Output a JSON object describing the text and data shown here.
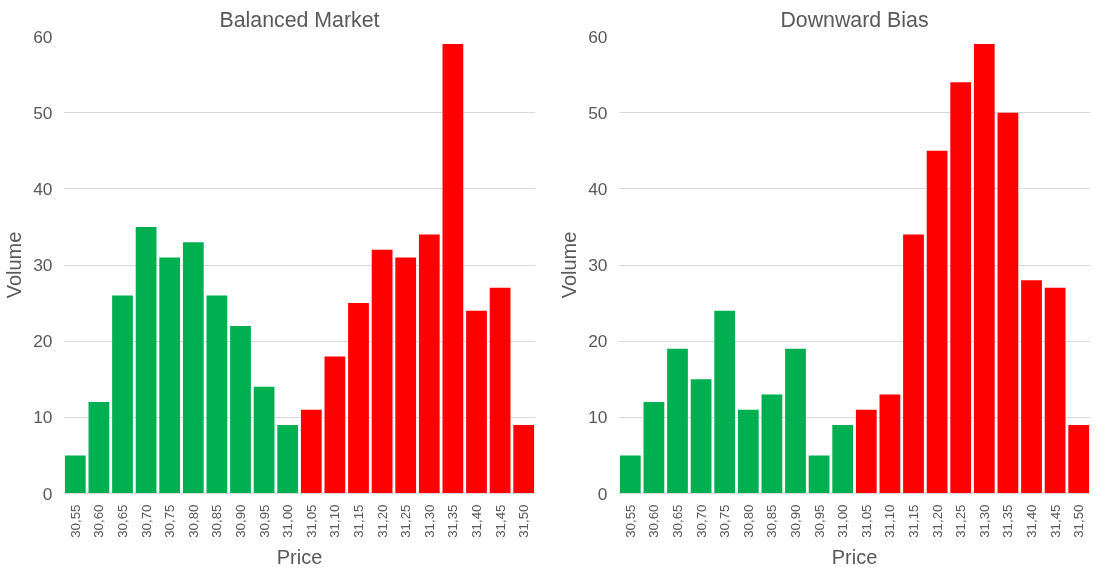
{
  "chart_data": [
    {
      "type": "bar",
      "title": "Balanced Market",
      "xlabel": "Price",
      "ylabel": "Volume",
      "categories": [
        "30,55",
        "30,60",
        "30,65",
        "30,70",
        "30,75",
        "30,80",
        "30,85",
        "30,90",
        "30,95",
        "31,00",
        "31,05",
        "31,10",
        "31,15",
        "31,20",
        "31,25",
        "31,30",
        "31,35",
        "31,40",
        "31,45",
        "31,50"
      ],
      "values": [
        5,
        12,
        26,
        35,
        31,
        33,
        26,
        22,
        14,
        9,
        11,
        18,
        25,
        32,
        31,
        34,
        59,
        24,
        27,
        9
      ],
      "colors": [
        "#00b050",
        "#00b050",
        "#00b050",
        "#00b050",
        "#00b050",
        "#00b050",
        "#00b050",
        "#00b050",
        "#00b050",
        "#00b050",
        "#ff0000",
        "#ff0000",
        "#ff0000",
        "#ff0000",
        "#ff0000",
        "#ff0000",
        "#ff0000",
        "#ff0000",
        "#ff0000",
        "#ff0000"
      ],
      "ylim": [
        0,
        60
      ],
      "yticks": [
        0,
        10,
        20,
        30,
        40,
        50,
        60
      ],
      "grid": "y"
    },
    {
      "type": "bar",
      "title": "Downward Bias",
      "xlabel": "Price",
      "ylabel": "Volume",
      "categories": [
        "30,55",
        "30,60",
        "30,65",
        "30,70",
        "30,75",
        "30,80",
        "30,85",
        "30,90",
        "30,95",
        "31,00",
        "31,05",
        "31,10",
        "31,15",
        "31,20",
        "31,25",
        "31,30",
        "31,35",
        "31,40",
        "31,45",
        "31,50"
      ],
      "values": [
        5,
        12,
        19,
        15,
        24,
        11,
        13,
        19,
        5,
        9,
        11,
        13,
        34,
        45,
        54,
        59,
        50,
        28,
        27,
        9
      ],
      "colors": [
        "#00b050",
        "#00b050",
        "#00b050",
        "#00b050",
        "#00b050",
        "#00b050",
        "#00b050",
        "#00b050",
        "#00b050",
        "#00b050",
        "#ff0000",
        "#ff0000",
        "#ff0000",
        "#ff0000",
        "#ff0000",
        "#ff0000",
        "#ff0000",
        "#ff0000",
        "#ff0000",
        "#ff0000"
      ],
      "ylim": [
        0,
        60
      ],
      "yticks": [
        0,
        10,
        20,
        30,
        40,
        50,
        60
      ],
      "grid": "y"
    }
  ]
}
